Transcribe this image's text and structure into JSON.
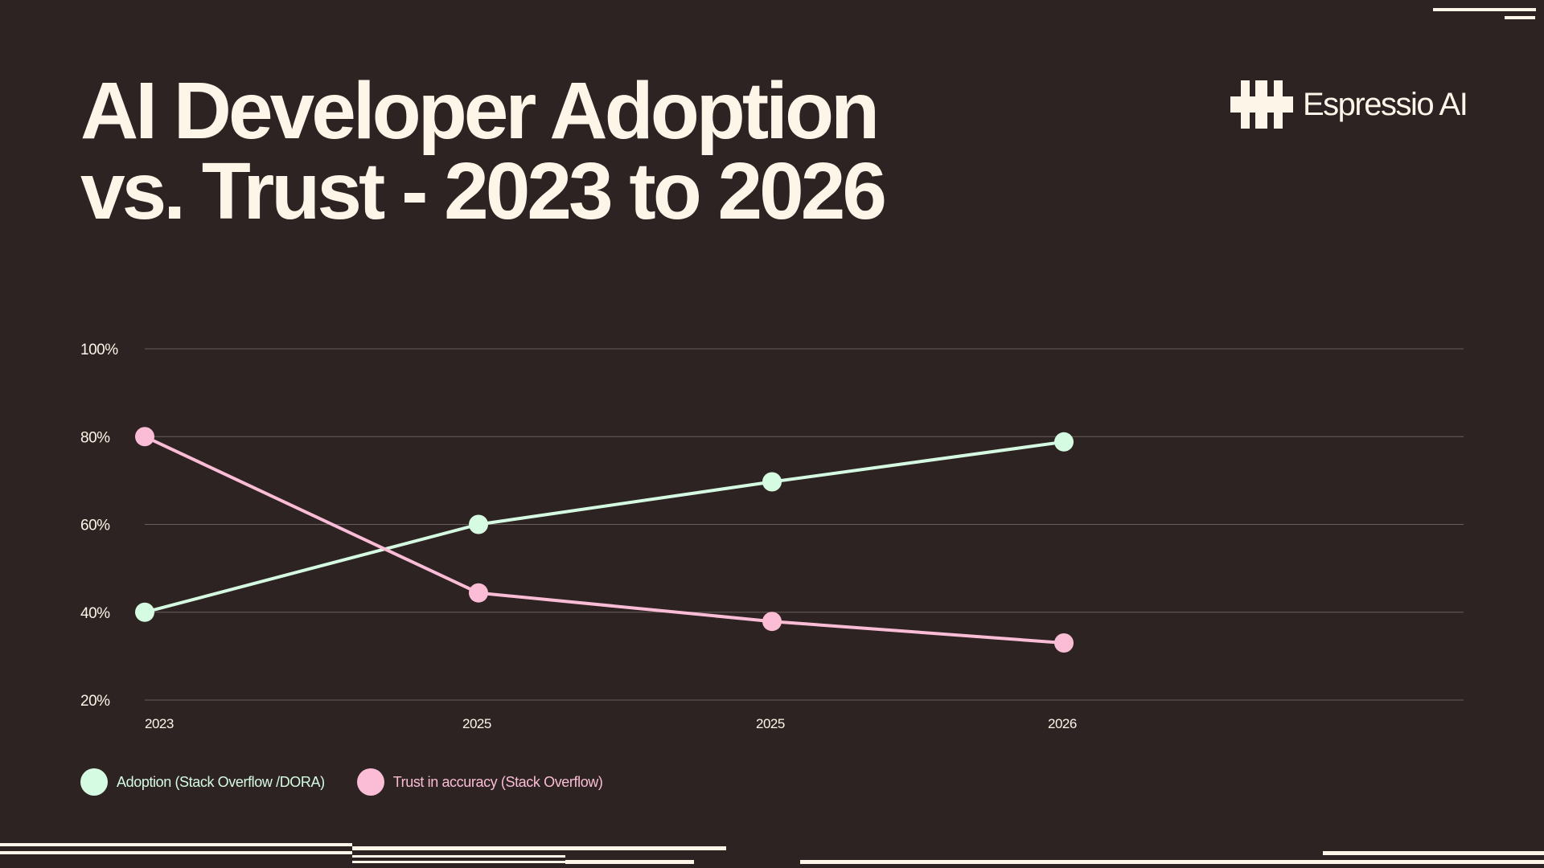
{
  "header": {
    "title_line1": "AI Developer Adoption",
    "title_line2": "vs. Trust - 2023 to 2026"
  },
  "brand": {
    "name": "Espressio AI",
    "logo_icon": "espressio-logo-icon"
  },
  "colors": {
    "background": "#2c2322",
    "text": "#fdf6e8",
    "grid": "#6b5e5c",
    "adoption": "#d6fbe3",
    "trust": "#fbbdd6"
  },
  "chart_data": {
    "type": "line",
    "title": "AI Developer Adoption vs. Trust - 2023 to 2026",
    "categories": [
      "2023",
      "2025",
      "2025",
      "2026"
    ],
    "yticks": [
      "100%",
      "80%",
      "60%",
      "40%",
      "20%"
    ],
    "ytick_values": [
      100,
      80,
      60,
      40,
      20
    ],
    "ylim": [
      20,
      100
    ],
    "grid": true,
    "legend_position": "bottom-left",
    "series": [
      {
        "name": "Adoption (Stack Overflow /DORA)",
        "values": [
          40,
          60,
          69.7,
          78.8
        ]
      },
      {
        "name": "Trust in accuracy (Stack Overflow)",
        "values": [
          80,
          44.4,
          37.9,
          33
        ]
      }
    ]
  }
}
